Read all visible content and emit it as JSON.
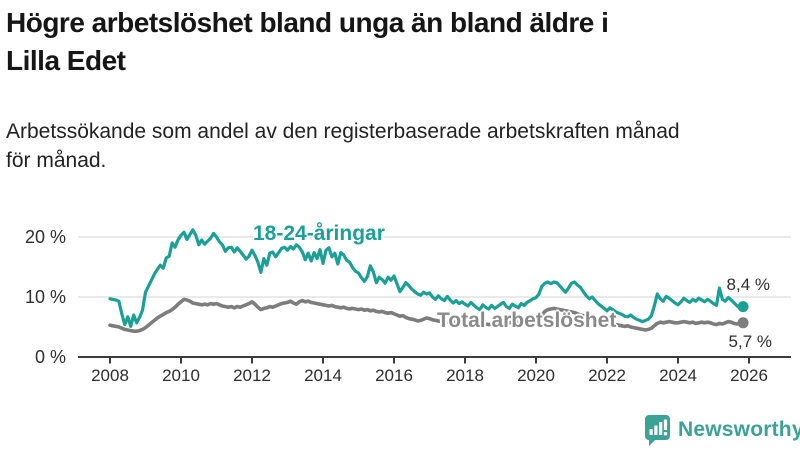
{
  "header": {
    "title_lines": [
      "Högre arbetslöshet bland unga än bland äldre i",
      "Lilla Edet"
    ],
    "subtitle_lines": [
      "Arbetssökande som andel av den registerbaserade arbetskraften månad",
      "för månad."
    ]
  },
  "chart_data": {
    "type": "line",
    "x_unit": "year-month",
    "x_start_year": 2008,
    "x_step_months": 1,
    "x_ticks": [
      2008,
      2010,
      2012,
      2014,
      2016,
      2018,
      2020,
      2022,
      2024,
      2026
    ],
    "y_ticks": [
      {
        "value": 0,
        "label": "0 %"
      },
      {
        "value": 10,
        "label": "10 %"
      },
      {
        "value": 20,
        "label": "20 %"
      }
    ],
    "ylim": [
      0,
      22
    ],
    "grid": "horizontal",
    "colors": {
      "young": "#1aa096",
      "total": "#7d7d7d",
      "total_label": "#8a8a8a",
      "gridline": "#dcdcdc",
      "axis": "#3c3c3c",
      "tick_text": "#2e2e2e"
    },
    "series": [
      {
        "name": "18-24-åringar",
        "end_label": "8,4 %",
        "end_value": 8.4,
        "values": [
          9.7,
          9.6,
          9.5,
          9.3,
          7.2,
          5.4,
          6.7,
          5.1,
          7.0,
          5.7,
          6.6,
          7.8,
          10.8,
          11.8,
          12.8,
          13.8,
          14.6,
          15.3,
          14.8,
          16.5,
          16.8,
          19.0,
          18.3,
          19.5,
          20.3,
          20.8,
          19.6,
          20.4,
          21.2,
          20.3,
          18.7,
          19.5,
          18.8,
          19.3,
          19.8,
          20.6,
          20.0,
          19.2,
          18.7,
          17.6,
          18.2,
          18.3,
          17.5,
          18.2,
          17.6,
          17.0,
          16.3,
          16.8,
          17.8,
          16.9,
          15.8,
          14.1,
          16.4,
          15.3,
          17.3,
          17.5,
          16.7,
          17.4,
          18.1,
          18.3,
          17.8,
          18.4,
          18.0,
          18.7,
          18.3,
          17.5,
          16.2,
          17.3,
          16.0,
          17.4,
          16.4,
          17.9,
          15.6,
          17.8,
          18.2,
          16.7,
          17.3,
          15.5,
          17.4,
          17.0,
          16.1,
          15.8,
          14.9,
          14.3,
          14.0,
          13.2,
          12.6,
          13.4,
          15.2,
          14.2,
          12.4,
          13.3,
          12.9,
          12.3,
          13.3,
          12.8,
          13.5,
          12.2,
          10.9,
          11.6,
          12.4,
          11.9,
          11.3,
          10.9,
          10.5,
          10.3,
          10.8,
          10.5,
          10.7,
          10.0,
          9.6,
          10.2,
          9.7,
          9.4,
          10.1,
          9.5,
          9.0,
          9.4,
          8.9,
          9.2,
          8.8,
          8.5,
          9.1,
          8.6,
          8.2,
          7.9,
          8.7,
          8.3,
          8.0,
          8.6,
          8.1,
          8.4,
          8.8,
          9.1,
          8.4,
          8.1,
          8.8,
          8.5,
          8.2,
          8.9,
          8.6,
          9.1,
          9.4,
          9.7,
          9.9,
          10.5,
          11.8,
          12.3,
          12.5,
          12.2,
          12.5,
          12.4,
          11.9,
          11.3,
          10.8,
          11.5,
          12.3,
          12.5,
          12.0,
          11.6,
          10.9,
          10.2,
          9.7,
          10.0,
          9.4,
          8.9,
          8.5,
          8.1,
          7.7,
          8.2,
          7.9,
          7.5,
          7.3,
          7.1,
          6.8,
          6.7,
          7.0,
          6.6,
          6.3,
          6.1,
          5.9,
          6.1,
          6.3,
          6.9,
          8.5,
          10.5,
          9.7,
          9.3,
          10.1,
          9.8,
          9.4,
          9.0,
          8.7,
          9.2,
          9.8,
          9.4,
          9.1,
          9.6,
          9.3,
          9.8,
          9.5,
          9.2,
          9.6,
          9.3,
          8.9,
          8.6,
          11.5,
          9.6,
          9.3,
          9.9,
          9.5,
          9.0,
          8.5,
          8.2,
          8.4
        ]
      },
      {
        "name": "Total arbetslöshet",
        "end_label": "5,7 %",
        "end_value": 5.7,
        "values": [
          5.3,
          5.2,
          5.1,
          5.0,
          4.8,
          4.6,
          4.5,
          4.4,
          4.3,
          4.3,
          4.4,
          4.6,
          4.9,
          5.3,
          5.7,
          6.1,
          6.5,
          6.8,
          7.1,
          7.4,
          7.6,
          7.9,
          8.3,
          8.8,
          9.2,
          9.6,
          9.5,
          9.3,
          9.0,
          8.9,
          8.8,
          8.7,
          8.8,
          8.7,
          8.9,
          8.8,
          8.9,
          8.7,
          8.5,
          8.4,
          8.3,
          8.4,
          8.2,
          8.4,
          8.3,
          8.5,
          8.7,
          8.9,
          9.2,
          8.8,
          8.3,
          7.9,
          8.1,
          8.2,
          8.4,
          8.3,
          8.5,
          8.7,
          8.9,
          9.0,
          9.1,
          9.3,
          9.0,
          8.8,
          9.2,
          9.4,
          9.2,
          9.3,
          9.1,
          9.0,
          8.9,
          8.8,
          8.7,
          8.6,
          8.5,
          8.6,
          8.4,
          8.3,
          8.2,
          8.3,
          8.1,
          8.0,
          8.1,
          8.0,
          7.9,
          8.0,
          7.8,
          7.9,
          7.7,
          7.8,
          7.6,
          7.5,
          7.6,
          7.4,
          7.3,
          7.4,
          7.2,
          7.0,
          6.8,
          6.9,
          6.6,
          6.4,
          6.3,
          6.2,
          6.0,
          6.1,
          6.3,
          6.5,
          6.4,
          6.2,
          6.1,
          6.0,
          5.9,
          6.0,
          5.8,
          5.9,
          5.7,
          5.8,
          5.7,
          5.6,
          5.6,
          5.5,
          5.6,
          5.4,
          5.5,
          5.3,
          5.4,
          5.5,
          5.4,
          5.5,
          5.6,
          5.5,
          5.6,
          5.7,
          5.6,
          5.7,
          5.8,
          5.7,
          5.8,
          5.9,
          5.8,
          5.9,
          6.0,
          6.1,
          6.2,
          6.4,
          7.0,
          7.6,
          7.9,
          8.0,
          8.1,
          8.0,
          7.9,
          7.8,
          7.7,
          7.6,
          7.5,
          7.4,
          7.2,
          7.0,
          6.9,
          6.7,
          6.5,
          6.4,
          6.2,
          6.1,
          5.9,
          5.8,
          5.7,
          5.6,
          5.5,
          5.4,
          5.3,
          5.2,
          5.1,
          5.2,
          5.0,
          4.9,
          4.8,
          4.7,
          4.6,
          4.5,
          4.6,
          4.8,
          5.2,
          5.6,
          5.8,
          5.7,
          5.8,
          5.9,
          5.8,
          5.7,
          5.7,
          5.8,
          5.9,
          5.8,
          5.7,
          5.8,
          5.6,
          5.7,
          5.8,
          5.7,
          5.8,
          5.7,
          5.5,
          5.4,
          5.6,
          5.5,
          5.7,
          5.9,
          5.8,
          5.6,
          5.5,
          5.6,
          5.7
        ]
      }
    ]
  },
  "branding": {
    "logo_text": "Newsworthy",
    "logo_color": "#3aa396",
    "logo_icon": "bar-chart-speech-bubble-icon"
  }
}
